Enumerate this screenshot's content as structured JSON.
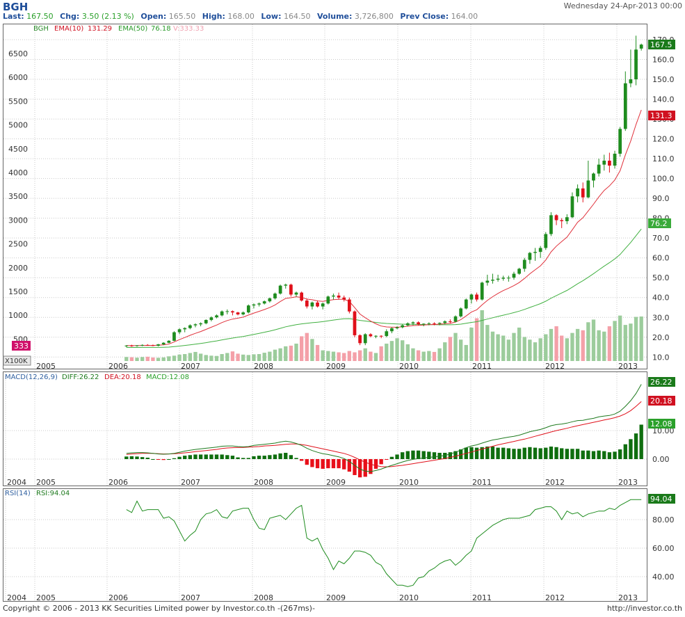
{
  "header": {
    "ticker": "BGH",
    "datetime": "Wednesday 24-Apr-2013 00:00",
    "last_label": "Last:",
    "last": "167.50",
    "chg_label": "Chg:",
    "chg": "3.50 (2.13 %)",
    "open_label": "Open:",
    "open": "165.50",
    "high_label": "High:",
    "high": "168.00",
    "low_label": "Low:",
    "low": "164.50",
    "volume_label": "Volume:",
    "volume": "3,726,800",
    "prevclose_label": "Prev Close:",
    "prevclose": "164.00"
  },
  "colors": {
    "up": "#1e8c1e",
    "down": "#e0101a",
    "ema10": "#e0303a",
    "ema50": "#40b040",
    "vol_up": "#9ccc9c",
    "vol_down": "#f4a0a8",
    "grid": "#c8c8c8"
  },
  "main_panel": {
    "legend": {
      "symbol": "BGH",
      "ema10": "EMA(10)",
      "ema10_val": "131.29",
      "ema50": "EMA(50)",
      "ema50_val": "76.18",
      "vol": "V:333.33"
    },
    "left_axis_ticks": [
      "6500",
      "6000",
      "5500",
      "5000",
      "4500",
      "4000",
      "3500",
      "3000",
      "2500",
      "2000",
      "1500",
      "1000",
      "500"
    ],
    "right_axis_ticks": [
      "170.0",
      "160.0",
      "150.0",
      "140.0",
      "130.0",
      "120.0",
      "110.0",
      "100.0",
      "90.0",
      "80.0",
      "70.0",
      "60.0",
      "50.0",
      "40.0",
      "30.0",
      "20.0",
      "10.0"
    ],
    "vol_tag": "333",
    "vol_unit": "X100K",
    "price_tag": "167.5",
    "ema10_tag": "131.3",
    "ema50_tag": "76.2",
    "x_labels": [
      "2005",
      "2006",
      "2007",
      "2008",
      "2009",
      "2010",
      "2011",
      "2012",
      "2013"
    ]
  },
  "macd_panel": {
    "legend": {
      "name": "MACD(12,26,9)",
      "diff": "DIFF:26.22",
      "dea": "DEA:20.18",
      "macd": "MACD:12.08"
    },
    "right_axis_ticks": [
      "10.00",
      "0.00"
    ],
    "tags": {
      "diff": "26.22",
      "dea": "20.18",
      "macd": "12.08"
    },
    "x_labels": [
      "2004",
      "2005",
      "2006",
      "2007",
      "2008",
      "2009",
      "2010",
      "2011",
      "2012",
      "2013"
    ]
  },
  "rsi_panel": {
    "legend": {
      "name": "RSI(14)",
      "rsi": "RSI:94.04"
    },
    "right_axis_ticks": [
      "80.00",
      "60.00",
      "40.00"
    ],
    "tag": "94.04",
    "x_labels": [
      "2004",
      "2005",
      "2006",
      "2007",
      "2008",
      "2009",
      "2010",
      "2011",
      "2012",
      "2013"
    ]
  },
  "footer": {
    "copyright": "Copyright © 2006 - 2013 KK Securities Limited power by Investor.co.th  -(267ms)-",
    "url": "http://investor.co.th"
  },
  "chart_data": {
    "type": "candlestick",
    "interval": "monthly",
    "x_range": [
      "2004",
      "2013-04"
    ],
    "price_ylim": [
      5,
      172
    ],
    "candles": [
      [
        15.5,
        16.0,
        15.0,
        15.8
      ],
      [
        15.8,
        16.2,
        15.2,
        15.6
      ],
      [
        15.6,
        16.0,
        15.2,
        15.9
      ],
      [
        15.9,
        16.4,
        15.5,
        16.1
      ],
      [
        16.1,
        16.5,
        15.7,
        16.0
      ],
      [
        16.0,
        16.3,
        15.5,
        15.7
      ],
      [
        15.7,
        16.6,
        15.4,
        16.4
      ],
      [
        16.4,
        17.5,
        16.0,
        17.2
      ],
      [
        17.2,
        18.5,
        17.0,
        18.2
      ],
      [
        18.2,
        23.0,
        18.0,
        22.5
      ],
      [
        22.5,
        24.5,
        21.5,
        24.0
      ],
      [
        24.0,
        25.0,
        22.5,
        24.6
      ],
      [
        24.6,
        26.5,
        24.0,
        26.0
      ],
      [
        26.0,
        27.0,
        25.0,
        26.5
      ],
      [
        26.5,
        27.5,
        25.5,
        27.0
      ],
      [
        27.0,
        29.0,
        26.5,
        28.7
      ],
      [
        28.7,
        30.5,
        28.0,
        30.0
      ],
      [
        30.0,
        31.5,
        29.5,
        31.0
      ],
      [
        31.0,
        33.5,
        30.5,
        33.0
      ],
      [
        33.0,
        34.0,
        31.5,
        33.1
      ],
      [
        33.1,
        33.5,
        31.0,
        32.5
      ],
      [
        32.5,
        32.8,
        31.0,
        31.5
      ],
      [
        31.5,
        33.0,
        31.0,
        32.5
      ],
      [
        32.5,
        36.5,
        32.0,
        36.0
      ],
      [
        36.0,
        37.0,
        34.5,
        36.5
      ],
      [
        36.5,
        37.5,
        35.5,
        37.0
      ],
      [
        37.0,
        38.5,
        36.5,
        38.1
      ],
      [
        38.1,
        40.0,
        37.5,
        39.6
      ],
      [
        39.6,
        42.5,
        39.0,
        42.0
      ],
      [
        42.0,
        46.5,
        41.5,
        46.0
      ],
      [
        46.0,
        47.0,
        44.5,
        46.5
      ],
      [
        46.5,
        47.0,
        40.5,
        41.5
      ],
      [
        41.5,
        43.0,
        40.5,
        42.5
      ],
      [
        42.5,
        43.0,
        38.0,
        38.5
      ],
      [
        38.5,
        39.5,
        34.5,
        35.5
      ],
      [
        35.5,
        38.0,
        34.0,
        37.5
      ],
      [
        37.5,
        38.5,
        35.0,
        35.5
      ],
      [
        35.5,
        37.5,
        34.0,
        37.0
      ],
      [
        37.0,
        41.0,
        36.5,
        40.5
      ],
      [
        40.5,
        42.0,
        39.0,
        41.0
      ],
      [
        41.0,
        42.5,
        39.0,
        40.0
      ],
      [
        40.0,
        41.0,
        38.0,
        39.0
      ],
      [
        39.0,
        40.0,
        32.0,
        33.0
      ],
      [
        33.0,
        33.5,
        20.0,
        21.0
      ],
      [
        21.0,
        21.5,
        16.0,
        17.0
      ],
      [
        17.0,
        22.0,
        16.0,
        21.5
      ],
      [
        21.5,
        22.0,
        20.0,
        20.5
      ],
      [
        20.5,
        21.0,
        19.5,
        20.7
      ],
      [
        20.7,
        21.0,
        19.5,
        20.6
      ],
      [
        20.6,
        24.0,
        20.0,
        23.0
      ],
      [
        23.0,
        25.0,
        22.0,
        24.5
      ],
      [
        24.5,
        25.5,
        24.0,
        25.0
      ],
      [
        25.0,
        26.5,
        24.5,
        26.0
      ],
      [
        26.0,
        27.5,
        25.5,
        27.0
      ],
      [
        27.0,
        28.0,
        26.0,
        27.5
      ],
      [
        27.5,
        28.0,
        26.0,
        26.5
      ],
      [
        26.5,
        27.0,
        25.5,
        26.8
      ],
      [
        26.8,
        27.5,
        26.0,
        27.0
      ],
      [
        27.0,
        27.5,
        26.0,
        26.8
      ],
      [
        26.8,
        27.5,
        26.0,
        27.2
      ],
      [
        27.2,
        28.5,
        26.5,
        28.0
      ],
      [
        28.0,
        29.0,
        27.0,
        27.8
      ],
      [
        27.8,
        31.0,
        27.5,
        30.5
      ],
      [
        30.5,
        35.0,
        30.0,
        34.5
      ],
      [
        34.5,
        39.5,
        34.0,
        39.0
      ],
      [
        39.0,
        42.0,
        37.0,
        41.5
      ],
      [
        41.5,
        42.5,
        38.0,
        39.0
      ],
      [
        39.0,
        48.0,
        38.5,
        47.5
      ],
      [
        47.5,
        51.5,
        46.0,
        48.5
      ],
      [
        48.5,
        52.0,
        47.0,
        49.0
      ],
      [
        49.0,
        51.5,
        48.0,
        49.5
      ],
      [
        49.5,
        51.0,
        48.5,
        50.0
      ],
      [
        50.0,
        51.0,
        48.0,
        50.0
      ],
      [
        50.0,
        53.0,
        49.0,
        52.0
      ],
      [
        52.0,
        55.0,
        51.5,
        54.5
      ],
      [
        54.5,
        60.0,
        53.0,
        59.0
      ],
      [
        59.0,
        63.0,
        57.0,
        62.5
      ],
      [
        62.5,
        65.0,
        58.5,
        63.0
      ],
      [
        63.0,
        66.0,
        60.0,
        65.0
      ],
      [
        65.0,
        73.0,
        64.0,
        72.0
      ],
      [
        72.0,
        83.0,
        71.0,
        81.5
      ],
      [
        81.5,
        82.0,
        76.5,
        79.0
      ],
      [
        79.0,
        80.0,
        75.0,
        78.5
      ],
      [
        78.5,
        82.0,
        77.0,
        80.5
      ],
      [
        80.5,
        93.0,
        80.0,
        91.0
      ],
      [
        91.0,
        97.0,
        88.0,
        95.0
      ],
      [
        95.0,
        98.0,
        88.0,
        90.5
      ],
      [
        90.5,
        109.0,
        90.0,
        99.0
      ],
      [
        99.0,
        103.0,
        95.5,
        102.5
      ],
      [
        102.5,
        110.0,
        101.0,
        107.0
      ],
      [
        107.0,
        112.0,
        104.0,
        109.0
      ],
      [
        109.0,
        113.0,
        103.0,
        106.5
      ],
      [
        106.5,
        114.0,
        105.0,
        112.5
      ],
      [
        112.5,
        126.0,
        111.0,
        125.0
      ],
      [
        125.0,
        154.0,
        124.0,
        148.0
      ],
      [
        148.0,
        165.0,
        146.0,
        150.0
      ],
      [
        150.0,
        172.0,
        147.0,
        165.0
      ],
      [
        165.5,
        168.0,
        164.5,
        167.5
      ]
    ],
    "volume_x100k": [
      30,
      28,
      25,
      30,
      32,
      26,
      24,
      27,
      35,
      40,
      48,
      52,
      60,
      68,
      55,
      45,
      40,
      38,
      52,
      60,
      72,
      55,
      48,
      45,
      50,
      52,
      62,
      70,
      85,
      95,
      110,
      115,
      130,
      185,
      210,
      165,
      120,
      80,
      75,
      70,
      65,
      60,
      75,
      65,
      80,
      95,
      70,
      60,
      110,
      130,
      150,
      170,
      155,
      125,
      95,
      80,
      70,
      75,
      68,
      95,
      140,
      180,
      210,
      160,
      120,
      250,
      320,
      380,
      270,
      220,
      200,
      190,
      160,
      210,
      250,
      180,
      160,
      140,
      170,
      200,
      240,
      260,
      190,
      170,
      210,
      240,
      230,
      290,
      310,
      230,
      220,
      260,
      300,
      340,
      270,
      280,
      330,
      333
    ],
    "volume_direction": "red when close < open, green otherwise",
    "ema10": {
      "name": "EMA(10)",
      "last": 131.29
    },
    "ema50": {
      "name": "EMA(50)",
      "last": 76.18
    },
    "macd": {
      "name": "MACD(12,26,9)",
      "ylim": [
        -7,
        28
      ],
      "diff": [
        2.0,
        2.2,
        2.3,
        2.3,
        2.2,
        2.0,
        1.8,
        1.7,
        1.8,
        2.0,
        2.4,
        2.8,
        3.1,
        3.4,
        3.6,
        3.8,
        4.0,
        4.2,
        4.5,
        4.6,
        4.6,
        4.4,
        4.3,
        4.4,
        4.8,
        5.0,
        5.2,
        5.4,
        5.6,
        6.0,
        6.3,
        6.0,
        5.5,
        4.8,
        3.8,
        3.0,
        2.4,
        1.9,
        1.6,
        1.2,
        0.8,
        0.2,
        -0.8,
        -2.2,
        -3.5,
        -4.2,
        -4.4,
        -4.0,
        -3.5,
        -2.8,
        -2.2,
        -1.6,
        -1.0,
        -0.5,
        -0.1,
        0.2,
        0.4,
        0.6,
        0.8,
        1.0,
        1.3,
        1.8,
        2.4,
        3.2,
        4.0,
        4.6,
        5.0,
        5.6,
        6.2,
        6.7,
        7.0,
        7.4,
        7.7,
        8.0,
        8.4,
        9.0,
        9.6,
        10.0,
        10.4,
        11.0,
        11.7,
        12.1,
        12.3,
        12.6,
        13.1,
        13.5,
        13.6,
        14.0,
        14.3,
        14.8,
        15.1,
        15.3,
        15.8,
        16.8,
        18.5,
        20.5,
        23.0,
        26.22
      ],
      "dea": [
        1.6,
        1.8,
        1.9,
        2.0,
        2.0,
        2.0,
        1.9,
        1.8,
        1.8,
        1.9,
        2.0,
        2.2,
        2.4,
        2.6,
        2.8,
        3.0,
        3.2,
        3.4,
        3.7,
        3.9,
        4.0,
        4.1,
        4.1,
        4.2,
        4.3,
        4.4,
        4.6,
        4.7,
        4.8,
        5.0,
        5.2,
        5.3,
        5.3,
        5.1,
        4.8,
        4.4,
        4.0,
        3.6,
        3.2,
        2.8,
        2.4,
        2.0,
        1.4,
        0.6,
        -0.3,
        -1.1,
        -1.8,
        -2.3,
        -2.6,
        -2.7,
        -2.6,
        -2.4,
        -2.2,
        -1.9,
        -1.6,
        -1.3,
        -1.0,
        -0.7,
        -0.4,
        -0.1,
        0.2,
        0.6,
        1.0,
        1.5,
        2.0,
        2.5,
        3.0,
        3.5,
        4.0,
        4.5,
        5.0,
        5.4,
        5.8,
        6.2,
        6.6,
        7.0,
        7.5,
        8.0,
        8.5,
        9.0,
        9.5,
        10.0,
        10.4,
        10.8,
        11.3,
        11.7,
        12.1,
        12.5,
        12.9,
        13.3,
        13.7,
        14.1,
        14.5,
        15.1,
        15.9,
        17.0,
        18.5,
        20.18
      ],
      "hist": [
        0.9,
        1.0,
        0.9,
        0.7,
        0.5,
        0.0,
        -0.2,
        -0.3,
        0.0,
        0.3,
        0.8,
        1.2,
        1.4,
        1.6,
        1.6,
        1.6,
        1.6,
        1.6,
        1.6,
        1.4,
        1.2,
        0.6,
        0.4,
        0.4,
        1.0,
        1.2,
        1.2,
        1.4,
        1.6,
        2.0,
        2.2,
        1.4,
        0.4,
        -0.6,
        -2.0,
        -2.8,
        -3.2,
        -3.4,
        -3.2,
        -3.2,
        -3.2,
        -3.6,
        -4.4,
        -5.6,
        -6.4,
        -6.2,
        -5.2,
        -3.4,
        -1.8,
        -0.2,
        0.8,
        1.6,
        2.4,
        2.8,
        3.0,
        3.0,
        2.8,
        2.6,
        2.4,
        2.2,
        2.2,
        2.4,
        2.8,
        3.4,
        4.0,
        4.2,
        4.0,
        4.2,
        4.4,
        4.4,
        4.0,
        4.0,
        3.8,
        3.6,
        3.6,
        4.0,
        4.2,
        4.0,
        3.8,
        4.0,
        4.4,
        4.2,
        3.8,
        3.6,
        3.6,
        3.6,
        3.0,
        3.0,
        2.8,
        3.0,
        2.8,
        2.4,
        2.6,
        3.4,
        5.2,
        7.0,
        9.0,
        12.08
      ]
    },
    "rsi": {
      "name": "RSI(14)",
      "ylim": [
        30,
        100
      ],
      "values": [
        87,
        85,
        93,
        86,
        87,
        87,
        87,
        81,
        82,
        79,
        72,
        65,
        69,
        72,
        80,
        84,
        85,
        87,
        82,
        81,
        86,
        87,
        88,
        88,
        80,
        74,
        73,
        81,
        82,
        83,
        80,
        84,
        88,
        90,
        67,
        65,
        67,
        59,
        53,
        45,
        51,
        49,
        53,
        58,
        58,
        57,
        55,
        50,
        48,
        42,
        38,
        34,
        34,
        33,
        34,
        39,
        40,
        44,
        46,
        49,
        51,
        52,
        48,
        51,
        55,
        58,
        67,
        70,
        73,
        76,
        78,
        80,
        81,
        81,
        81,
        82,
        83,
        87,
        88,
        89,
        89,
        86,
        80,
        86,
        84,
        85,
        82,
        84,
        85,
        86,
        86,
        88,
        87,
        90,
        92,
        94,
        94,
        94.04
      ]
    }
  }
}
